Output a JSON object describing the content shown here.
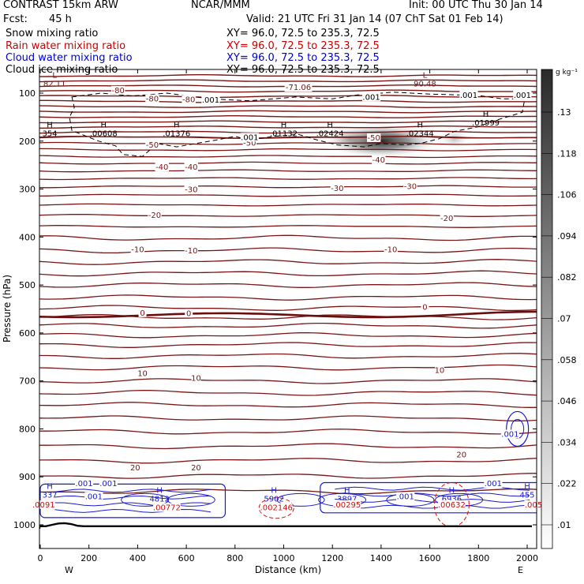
{
  "header": {
    "model": "CONTRAST 15km ARW",
    "center": "NCAR/MMM",
    "init": "Init: 00 UTC Thu 30 Jan 14",
    "fcst_label": "Fcst:",
    "fcst_value": "45 h",
    "valid": "Valid: 21 UTC Fri 31 Jan 14 (07 ChT Sat 01 Feb 14)"
  },
  "fields": [
    {
      "name": "Snow mixing ratio",
      "xy": "XY=  96.0, 72.5 to 235.3, 72.5",
      "color": "#000000"
    },
    {
      "name": "Rain water mixing ratio",
      "xy": "XY=  96.0, 72.5 to 235.3, 72.5",
      "color": "#cc0000"
    },
    {
      "name": "Cloud water mixing ratio",
      "xy": "XY=  96.0, 72.5 to 235.3, 72.5",
      "color": "#0000cc"
    },
    {
      "name": "Cloud ice mixing ratio",
      "xy": "XY=  96.0, 72.5 to 235.3, 72.5",
      "color": "#000000"
    }
  ],
  "chart_data": {
    "type": "cross-section contour",
    "xlabel": "Distance (km)",
    "ylabel": "Pressure (hPa)",
    "xlim": [
      0,
      2100
    ],
    "ylim": [
      1050,
      50
    ],
    "x_ticks": [
      0,
      200,
      400,
      600,
      800,
      1000,
      1200,
      1400,
      1600,
      1800,
      2000
    ],
    "y_ticks": [
      100,
      200,
      300,
      400,
      500,
      600,
      700,
      800,
      900,
      1000
    ],
    "x_end_labels": [
      "W",
      "E"
    ],
    "colorbar": {
      "units": "g kg⁻¹",
      "ticks": [
        ".01",
        ".022",
        ".034",
        ".046",
        ".058",
        ".07",
        ".082",
        ".094",
        ".106",
        ".118",
        ".13"
      ]
    },
    "temperature_contours": [
      {
        "label": "-80",
        "x": [
          320
        ],
        "p": [
          98
        ]
      },
      {
        "label": "-71.06",
        "x": [
          1060
        ],
        "p": [
          92
        ]
      },
      {
        "label": "-80",
        "x": [
          460,
          610
        ],
        "p": [
          116,
          117
        ]
      },
      {
        "label": "-50",
        "x": [
          460,
          860,
          1370
        ],
        "p": [
          212,
          208,
          197
        ]
      },
      {
        "label": "-40",
        "x": [
          500,
          620,
          1390
        ],
        "p": [
          258,
          258,
          243
        ]
      },
      {
        "label": "-30",
        "x": [
          620,
          1220,
          1520
        ],
        "p": [
          305,
          302,
          298
        ]
      },
      {
        "label": "-20",
        "x": [
          470,
          1670
        ],
        "p": [
          358,
          365
        ]
      },
      {
        "label": "-10",
        "x": [
          400,
          620,
          1440
        ],
        "p": [
          430,
          432,
          430
        ]
      },
      {
        "label": "0",
        "x": [
          420,
          610,
          1580
        ],
        "p": [
          562,
          563,
          550
        ]
      },
      {
        "label": "10",
        "x": [
          420,
          640,
          1640
        ],
        "p": [
          688,
          698,
          682
        ]
      },
      {
        "label": "20",
        "x": [
          390,
          640,
          1730
        ],
        "p": [
          885,
          885,
          858
        ]
      }
    ],
    "extrema_labels": [
      {
        "type": "L",
        "value": "82.11",
        "x": 20,
        "p": 84
      },
      {
        "type": "L",
        "value": "90.48",
        "x": 1580,
        "p": 84
      },
      {
        "type": "H",
        "value": "354",
        "x": 0,
        "p": 188
      },
      {
        "type": "H",
        "value": ".00608",
        "x": 260,
        "p": 188
      },
      {
        "type": "H",
        "value": ".01376",
        "x": 560,
        "p": 188
      },
      {
        "type": "H",
        "value": ".01132",
        "x": 1000,
        "p": 188
      },
      {
        "type": "H",
        "value": ".02424",
        "x": 1190,
        "p": 188
      },
      {
        "type": "H",
        "value": ".02344",
        "x": 1560,
        "p": 188
      },
      {
        "type": "H",
        "value": ".01999",
        "x": 1830,
        "p": 166
      },
      {
        "type": "H",
        "value": "337",
        "x": 0,
        "p": 942
      },
      {
        "type": "H",
        "value": "4812",
        "x": 490,
        "p": 950
      },
      {
        "type": "H",
        "value": "5902",
        "x": 960,
        "p": 950
      },
      {
        "type": "H",
        "value": "3897",
        "x": 1260,
        "p": 950
      },
      {
        "type": "H",
        "value": "6936",
        "x": 1690,
        "p": 950
      },
      {
        "type": "H",
        "value": "455",
        "x": 2030,
        "p": 942
      }
    ],
    "rain_labels": [
      {
        "value": ".0091",
        "x": 0,
        "p": 962
      },
      {
        "value": ".00772",
        "x": 520,
        "p": 968
      },
      {
        "value": ".002146",
        "x": 970,
        "p": 968
      },
      {
        "value": ".00295",
        "x": 1260,
        "p": 962
      },
      {
        "value": ".00632",
        "x": 1690,
        "p": 962
      },
      {
        "value": ".005",
        "x": 2040,
        "p": 962
      }
    ],
    "cloud_water_labels": [
      {
        "value": ".001",
        "x": 180,
        "p": 918
      },
      {
        "value": ".001",
        "x": 280,
        "p": 918
      },
      {
        "value": ".001",
        "x": 220,
        "p": 945
      },
      {
        "value": ".001",
        "x": 1500,
        "p": 945
      },
      {
        "value": ".001",
        "x": 1860,
        "p": 918
      },
      {
        "value": ".001",
        "x": 1930,
        "p": 815
      }
    ],
    "ice_labels": [
      {
        "value": ".001",
        "x": 700,
        "p": 118
      },
      {
        "value": ".001",
        "x": 1360,
        "p": 112
      },
      {
        "value": ".001",
        "x": 1760,
        "p": 108
      },
      {
        "value": ".001",
        "x": 1980,
        "p": 108
      },
      {
        "value": ".001",
        "x": 860,
        "p": 196
      }
    ],
    "snow_maxima": [
      {
        "x": 1400,
        "p": 200,
        "value": 0.13
      },
      {
        "x": 1270,
        "p": 195,
        "value": 0.07
      },
      {
        "x": 1700,
        "p": 195,
        "value": 0.03
      }
    ]
  }
}
